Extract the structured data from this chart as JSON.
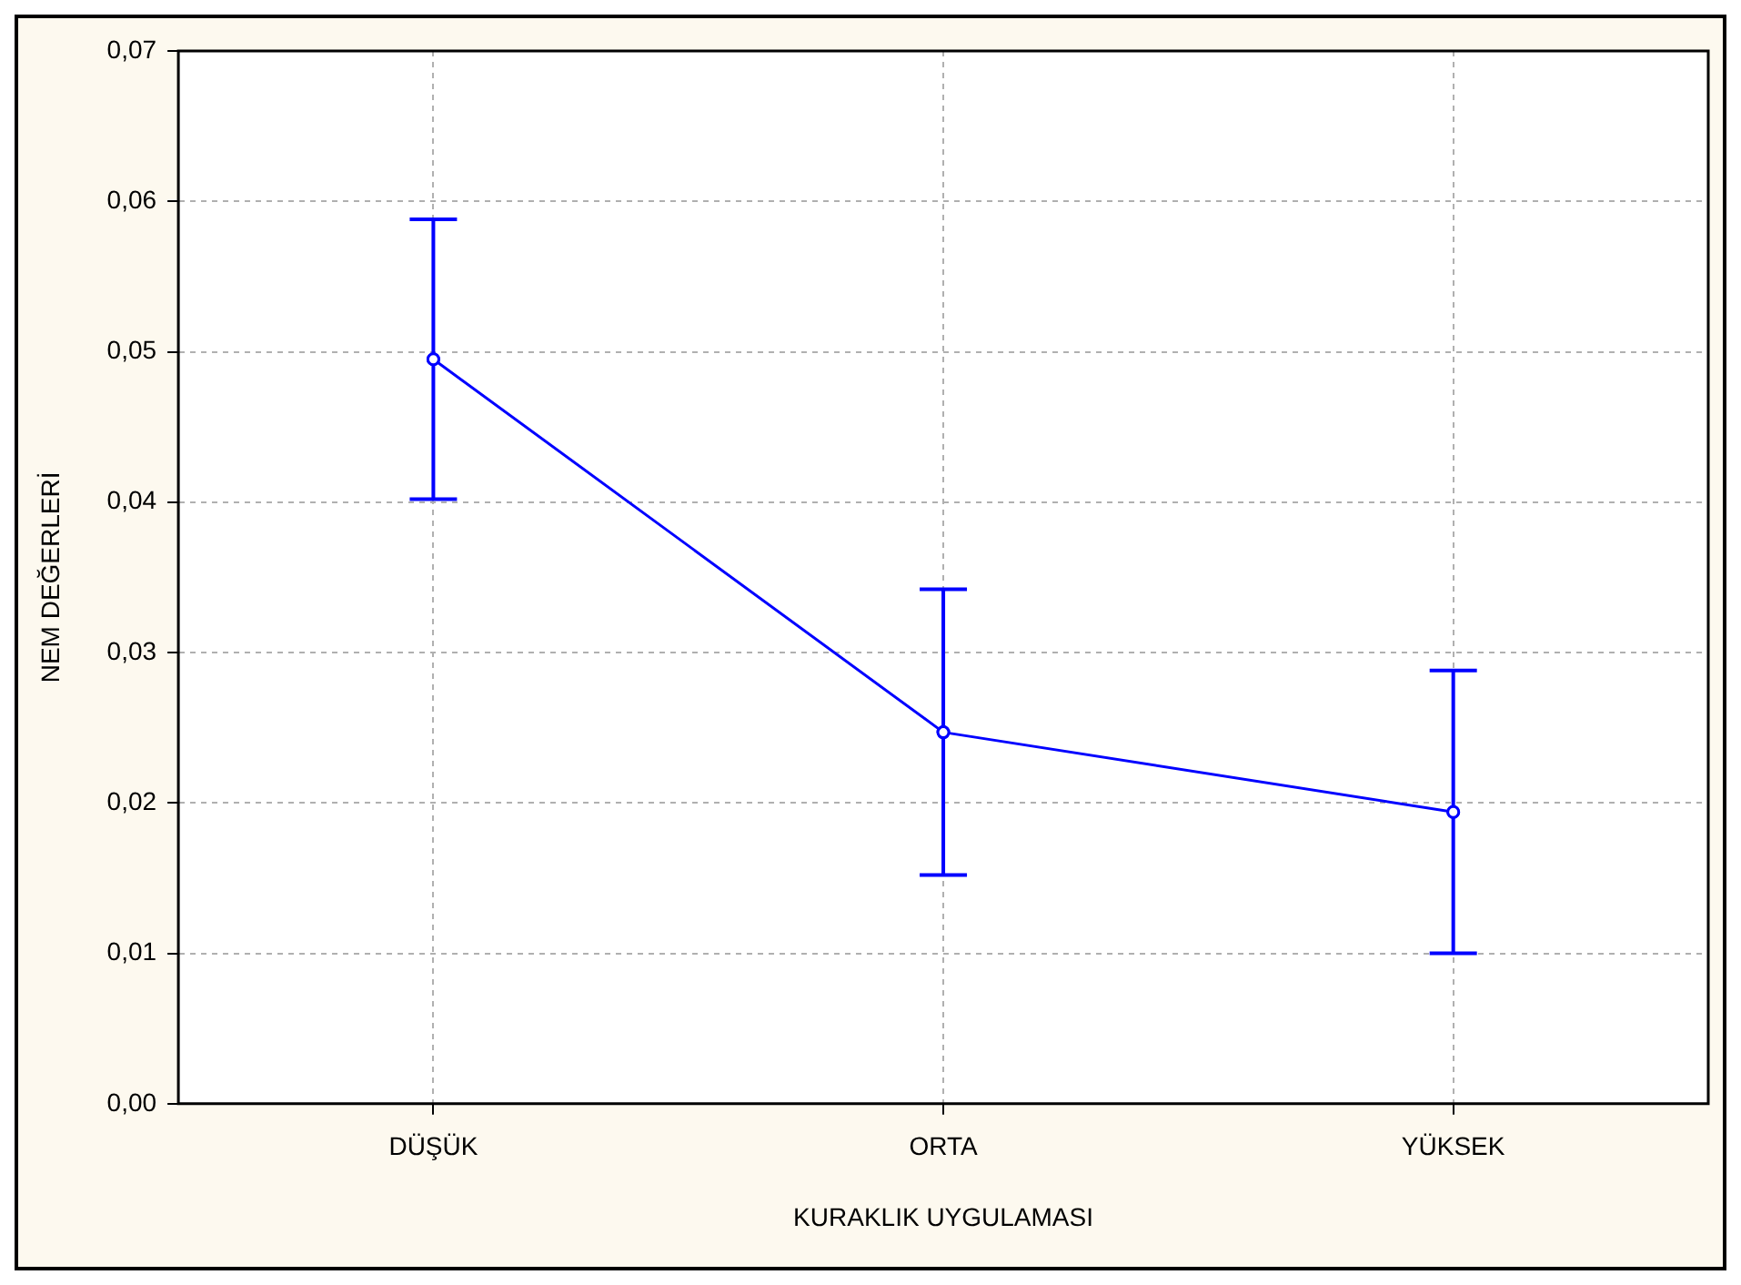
{
  "chart_data": {
    "type": "line",
    "xlabel": "KURAKLIK UYGULAMASI",
    "ylabel": "NEM DEĞERLERİ",
    "categories": [
      "DÜŞÜK",
      "ORTA",
      "YÜKSEK"
    ],
    "series": [
      {
        "color": "#0000ff",
        "values": [
          0.0495,
          0.0247,
          0.0194
        ],
        "errors": [
          0.0093,
          0.0095,
          0.0094
        ]
      }
    ],
    "ylim": [
      0,
      0.07
    ],
    "yticks": [
      {
        "value": 0,
        "label": "0,00"
      },
      {
        "value": 0.01,
        "label": "0,01"
      },
      {
        "value": 0.02,
        "label": "0,02"
      },
      {
        "value": 0.03,
        "label": "0,03"
      },
      {
        "value": 0.04,
        "label": "0,04"
      },
      {
        "value": 0.05,
        "label": "0,05"
      },
      {
        "value": 0.06,
        "label": "0,06"
      },
      {
        "value": 0.07,
        "label": "0,07"
      }
    ],
    "grid": true,
    "marker": "circle",
    "line_style": "solid"
  }
}
